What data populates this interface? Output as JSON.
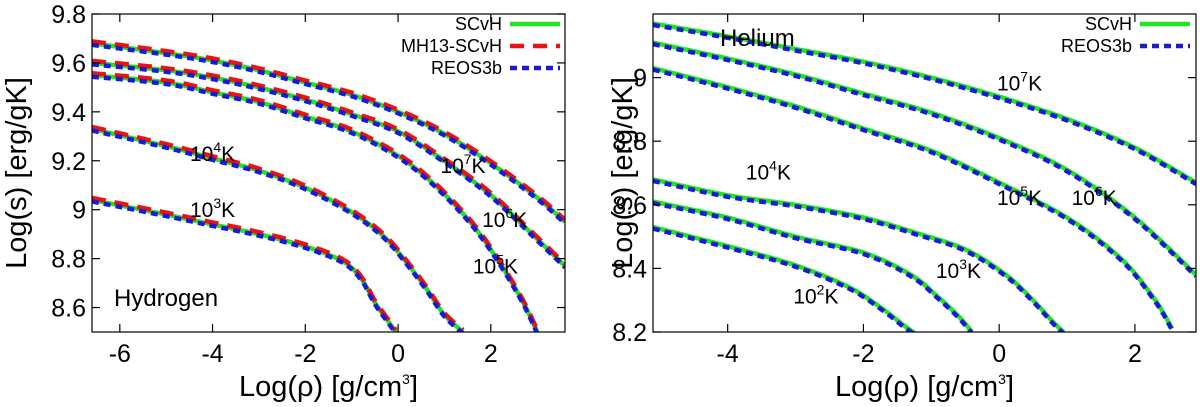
{
  "colors": {
    "scvh": "#22e422",
    "mh13": "#ee1111",
    "reos": "#1a1ad6",
    "axis": "#000000"
  },
  "chart_data": [
    {
      "type": "line",
      "panel_label": "Hydrogen",
      "xlabel_main": "Log(ρ) [g/cm",
      "xlabel_sup": "3",
      "xlabel_tail": "]",
      "ylabel": "Log(s) [erg/gK]",
      "xlim": [
        -6.6,
        3.6
      ],
      "ylim": [
        8.5,
        9.8
      ],
      "xticks": [
        -6,
        -4,
        -2,
        0,
        2
      ],
      "xtick_labels": [
        "-6",
        "-4",
        "-2",
        "0",
        "2"
      ],
      "yticks": [
        8.6,
        8.8,
        9,
        9.2,
        9.4,
        9.6,
        9.8
      ],
      "ytick_labels": [
        "8.6",
        "8.8",
        "9",
        "9.2",
        "9.4",
        "9.6",
        "9.8"
      ],
      "legend": [
        {
          "label": "SCvH",
          "style": "solid",
          "color": "#22e422"
        },
        {
          "label": "MH13-SCvH",
          "style": "dashed",
          "color": "#ee1111"
        },
        {
          "label": "REOS3b",
          "style": "dotted",
          "color": "#1a1ad6"
        }
      ],
      "annotations": [
        {
          "base": "10",
          "exp": "3",
          "unit": "K",
          "x": -4.0,
          "y": 8.97
        },
        {
          "base": "10",
          "exp": "4",
          "unit": "K",
          "x": -4.0,
          "y": 9.2
        },
        {
          "base": "10",
          "exp": "5",
          "unit": "K",
          "x": 2.1,
          "y": 8.74
        },
        {
          "base": "10",
          "exp": "6",
          "unit": "K",
          "x": 2.3,
          "y": 8.93
        },
        {
          "base": "10",
          "exp": "7",
          "unit": "K",
          "x": 1.4,
          "y": 9.15
        }
      ],
      "series": [
        {
          "name": "10^3 K",
          "x": [
            -6.6,
            -5,
            -4,
            -3,
            -2,
            -1.2,
            -0.8,
            -0.5,
            -0.2,
            -0.05
          ],
          "y": [
            9.04,
            8.98,
            8.94,
            8.9,
            8.85,
            8.79,
            8.72,
            8.62,
            8.54,
            8.5
          ]
        },
        {
          "name": "10^4 K",
          "x": [
            -6.6,
            -5,
            -4,
            -3,
            -2,
            -1,
            -0.3,
            0.2,
            0.6,
            1.0,
            1.4
          ],
          "y": [
            9.33,
            9.26,
            9.21,
            9.16,
            9.09,
            8.99,
            8.89,
            8.78,
            8.68,
            8.57,
            8.5
          ]
        },
        {
          "name": "10^5 K",
          "x": [
            -6.6,
            -5,
            -4,
            -3,
            -2,
            -1,
            0,
            0.8,
            1.6,
            2.2,
            2.7,
            3.0
          ],
          "y": [
            9.55,
            9.52,
            9.48,
            9.44,
            9.38,
            9.32,
            9.22,
            9.1,
            8.94,
            8.78,
            8.62,
            8.5
          ]
        },
        {
          "name": "10^6 K",
          "x": [
            -6.6,
            -5,
            -4,
            -3,
            -2,
            -1,
            0,
            1,
            2,
            3,
            3.6
          ],
          "y": [
            9.6,
            9.57,
            9.54,
            9.5,
            9.45,
            9.39,
            9.32,
            9.2,
            9.06,
            8.88,
            8.77
          ]
        },
        {
          "name": "10^7 K",
          "x": [
            -6.6,
            -5,
            -4,
            -3,
            -2,
            -1,
            0,
            1,
            2,
            3,
            3.6
          ],
          "y": [
            9.68,
            9.64,
            9.61,
            9.57,
            9.52,
            9.47,
            9.4,
            9.31,
            9.19,
            9.05,
            8.95
          ]
        }
      ]
    },
    {
      "type": "line",
      "panel_label": "Helium",
      "xlabel_main": "Log(ρ) [g/cm",
      "xlabel_sup": "3",
      "xlabel_tail": "]",
      "ylabel": "Log(s) [erg/gK]",
      "xlim": [
        -5.1,
        2.9
      ],
      "ylim": [
        8.2,
        9.2
      ],
      "xticks": [
        -4,
        -2,
        0,
        2
      ],
      "xtick_labels": [
        "-4",
        "-2",
        "0",
        "2"
      ],
      "yticks": [
        8.2,
        8.4,
        8.6,
        8.8,
        9
      ],
      "ytick_labels": [
        "8.2",
        "8.4",
        "8.6",
        "8.8",
        "9"
      ],
      "legend": [
        {
          "label": "SCvH",
          "style": "solid",
          "color": "#22e422"
        },
        {
          "label": "REOS3b",
          "style": "dotted",
          "color": "#1a1ad6"
        }
      ],
      "annotations": [
        {
          "base": "10",
          "exp": "2",
          "unit": "K",
          "x": -2.7,
          "y": 8.29
        },
        {
          "base": "10",
          "exp": "3",
          "unit": "K",
          "x": -0.6,
          "y": 8.37
        },
        {
          "base": "10",
          "exp": "4",
          "unit": "K",
          "x": -3.4,
          "y": 8.68
        },
        {
          "base": "10",
          "exp": "5",
          "unit": "K",
          "x": 0.3,
          "y": 8.6
        },
        {
          "base": "10",
          "exp": "6",
          "unit": "K",
          "x": 1.4,
          "y": 8.6
        },
        {
          "base": "10",
          "exp": "7",
          "unit": "K",
          "x": 0.3,
          "y": 8.96
        }
      ],
      "series": [
        {
          "name": "10^2 K",
          "x": [
            -5.1,
            -4,
            -3,
            -2.2,
            -1.7,
            -1.4,
            -1.2
          ],
          "y": [
            8.53,
            8.47,
            8.41,
            8.34,
            8.27,
            8.22,
            8.19
          ]
        },
        {
          "name": "10^3 K",
          "x": [
            -5.1,
            -4,
            -3,
            -2,
            -1.3,
            -0.9,
            -0.6,
            -0.4
          ],
          "y": [
            8.61,
            8.56,
            8.5,
            8.45,
            8.38,
            8.31,
            8.25,
            8.2
          ]
        },
        {
          "name": "10^4 K",
          "x": [
            -5.1,
            -4,
            -3,
            -2,
            -1.2,
            -0.5,
            0.1,
            0.5,
            0.8,
            0.95
          ],
          "y": [
            8.68,
            8.63,
            8.6,
            8.56,
            8.51,
            8.46,
            8.38,
            8.3,
            8.23,
            8.2
          ]
        },
        {
          "name": "10^5 K",
          "x": [
            -5.1,
            -4,
            -3,
            -2,
            -1,
            0,
            1,
            1.8,
            2.3,
            2.55
          ],
          "y": [
            9.03,
            8.97,
            8.91,
            8.84,
            8.77,
            8.67,
            8.56,
            8.43,
            8.3,
            8.21
          ]
        },
        {
          "name": "10^6 K",
          "x": [
            -5.1,
            -4,
            -3,
            -2,
            -1,
            0,
            1,
            2,
            2.9
          ],
          "y": [
            9.11,
            9.06,
            9.01,
            8.95,
            8.89,
            8.81,
            8.71,
            8.56,
            8.38
          ]
        },
        {
          "name": "10^7 K",
          "x": [
            -5.1,
            -4,
            -3,
            -2,
            -1,
            0,
            1,
            2,
            2.9
          ],
          "y": [
            9.17,
            9.13,
            9.09,
            9.05,
            9.0,
            8.94,
            8.87,
            8.78,
            8.67
          ]
        }
      ]
    }
  ]
}
